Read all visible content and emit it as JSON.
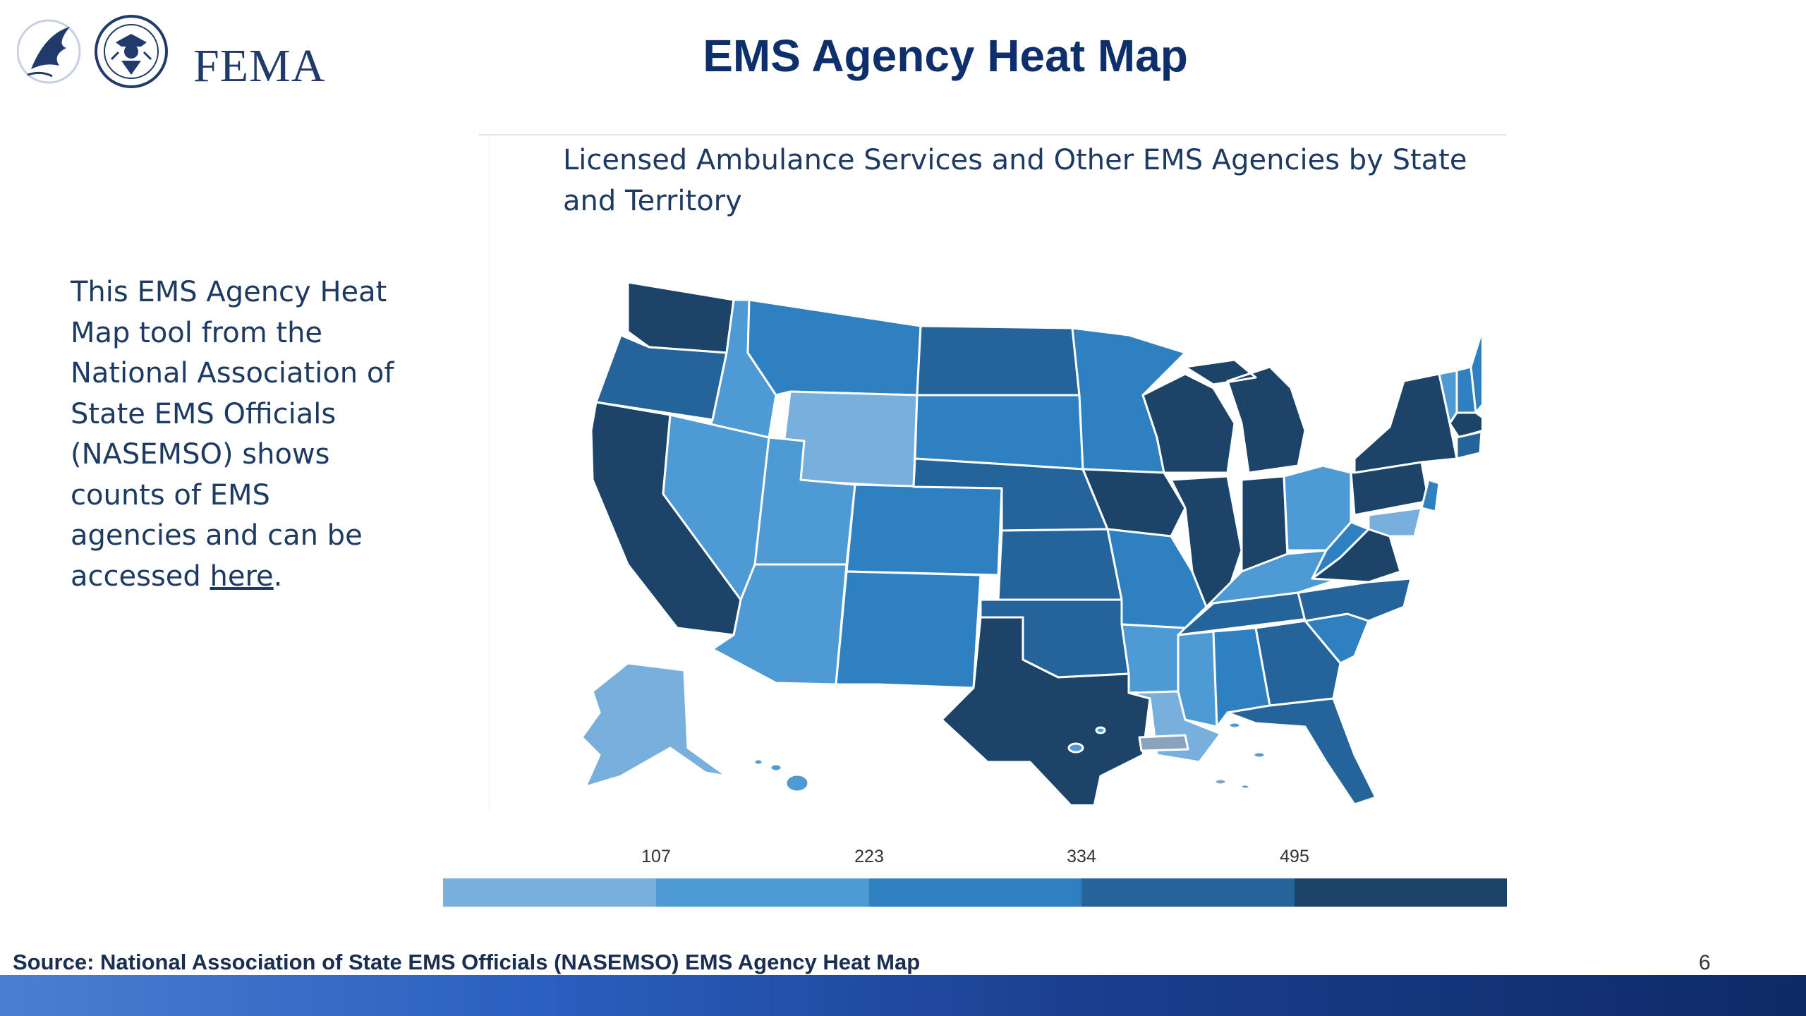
{
  "header": {
    "logo_text": "FEMA",
    "title": "EMS Agency Heat Map"
  },
  "map_panel": {
    "title": "Licensed Ambulance Services and Other EMS Agencies by State and Territory"
  },
  "side": {
    "text_before_link": "This EMS Agency Heat Map tool from the National Association of State EMS Officials (NASEMSO) shows counts of EMS agencies and can be accessed ",
    "link_text": "here",
    "text_after_link": "."
  },
  "legend": {
    "ticks": [
      "107",
      "223",
      "334",
      "495"
    ],
    "colors": [
      "#78b0dd",
      "#4e9ad4",
      "#2f80c1",
      "#24649a",
      "#1c4468"
    ]
  },
  "footer": {
    "source": "Source: National Association of State EMS Officials (NASEMSO) EMS Agency Heat Map",
    "page_number": "6"
  },
  "colors": {
    "title": "#0d2f6b",
    "text": "#1d3a63",
    "territory_gray": "#8aa3bd"
  }
}
